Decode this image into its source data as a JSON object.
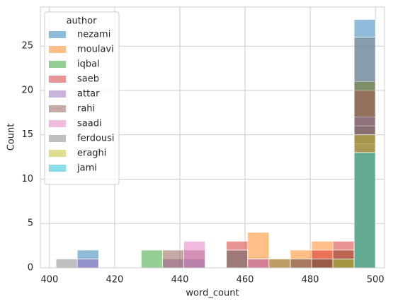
{
  "chart_data": {
    "type": "histogram",
    "xlabel": "word_count",
    "ylabel": "Count",
    "legend_title": "author",
    "bins": [
      402,
      408.53,
      415.07,
      421.6,
      428.13,
      434.67,
      441.2,
      447.73,
      454.27,
      460.8,
      467.33,
      473.87,
      480.4,
      486.93,
      493.47,
      500
    ],
    "series": [
      {
        "name": "nezami",
        "color": "#1f77b4",
        "values": [
          0,
          2,
          0,
          0,
          0,
          0,
          1,
          0,
          0,
          0,
          0,
          1,
          1,
          1,
          28
        ]
      },
      {
        "name": "moulavi",
        "color": "#ff7f0e",
        "values": [
          0,
          0,
          0,
          0,
          0,
          0,
          0,
          0,
          0,
          4,
          0,
          2,
          3,
          2,
          21
        ]
      },
      {
        "name": "iqbal",
        "color": "#2ca02c",
        "values": [
          0,
          0,
          0,
          0,
          2,
          0,
          0,
          0,
          0,
          0,
          0,
          0,
          1,
          1,
          21
        ]
      },
      {
        "name": "saeb",
        "color": "#d62728",
        "values": [
          0,
          0,
          0,
          0,
          0,
          0,
          0,
          0,
          3,
          0,
          1,
          0,
          2,
          3,
          20
        ]
      },
      {
        "name": "attar",
        "color": "#9467bd",
        "values": [
          0,
          1,
          0,
          0,
          0,
          1,
          0,
          0,
          0,
          0,
          1,
          0,
          0,
          0,
          17
        ]
      },
      {
        "name": "rahi",
        "color": "#8c564b",
        "values": [
          0,
          0,
          0,
          0,
          0,
          2,
          2,
          0,
          2,
          1,
          0,
          1,
          1,
          2,
          16
        ]
      },
      {
        "name": "saadi",
        "color": "#e377c2",
        "values": [
          0,
          0,
          0,
          0,
          0,
          0,
          3,
          0,
          0,
          1,
          0,
          0,
          0,
          0,
          14
        ]
      },
      {
        "name": "ferdousi",
        "color": "#7f7f7f",
        "values": [
          1,
          0,
          0,
          0,
          0,
          0,
          0,
          0,
          2,
          0,
          0,
          0,
          0,
          1,
          26
        ]
      },
      {
        "name": "eraghi",
        "color": "#bcbd22",
        "values": [
          0,
          0,
          0,
          0,
          0,
          0,
          0,
          0,
          0,
          0,
          1,
          0,
          0,
          1,
          15
        ]
      },
      {
        "name": "jami",
        "color": "#17becf",
        "values": [
          0,
          0,
          0,
          0,
          0,
          0,
          0,
          0,
          0,
          0,
          0,
          0,
          0,
          0,
          13
        ]
      }
    ],
    "xlim": [
      397.2,
      502.8
    ],
    "ylim": [
      0,
      29.4
    ],
    "xticks": [
      400,
      420,
      440,
      460,
      480,
      500
    ],
    "yticks": [
      0,
      5,
      10,
      15,
      20,
      25
    ],
    "grid": true,
    "legend_position": "upper-left"
  }
}
